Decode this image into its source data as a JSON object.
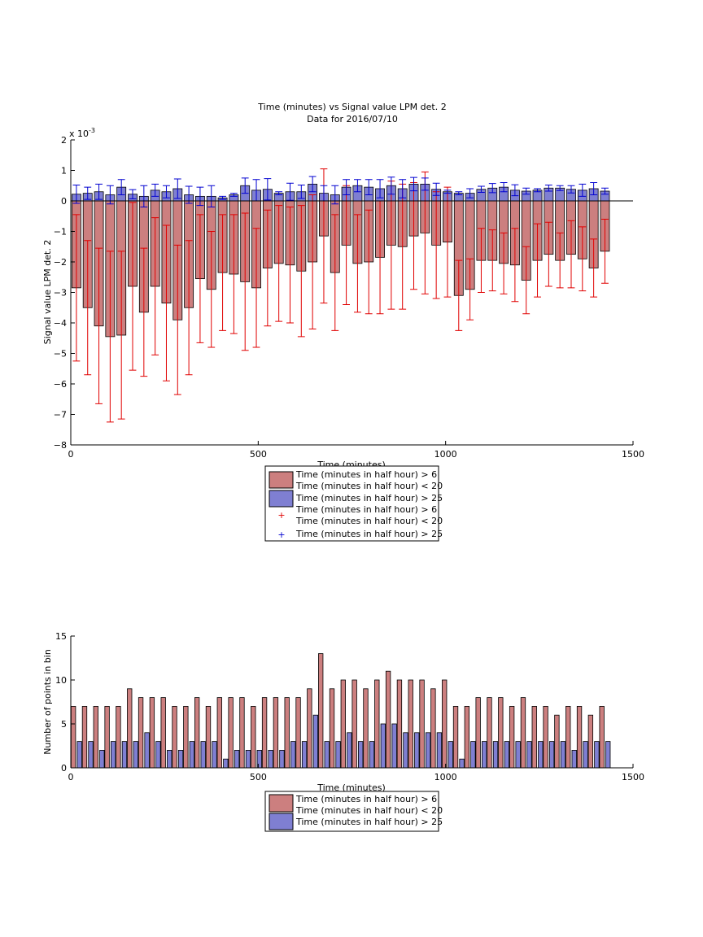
{
  "colors": {
    "red_fill": "#cc7f7f",
    "blue_fill": "#7f7fd2",
    "red_err": "#e00000",
    "blue_err": "#0000d0",
    "axis": "#000000"
  },
  "chart_data": [
    {
      "type": "bar",
      "title": "Time (minutes) vs Signal value LPM det. 2",
      "subtitle": "Data for 2016/07/10",
      "xlabel": "Time (minutes)",
      "ylabel": "Signal value LPM det. 2",
      "y_multiplier_label": "x 10",
      "y_multiplier_exp": "-3",
      "xlim": [
        0,
        1500
      ],
      "ylim": [
        -8,
        2
      ],
      "xticks": [
        "0",
        "500",
        "1000",
        "1500"
      ],
      "yticks": [
        "2",
        "1",
        "0",
        "−1",
        "−2",
        "−3",
        "−4",
        "−5",
        "−6",
        "−7",
        "−8"
      ],
      "bin_width_minutes": 30,
      "x": [
        15,
        45,
        75,
        105,
        135,
        165,
        195,
        225,
        255,
        285,
        315,
        345,
        375,
        405,
        435,
        465,
        495,
        525,
        555,
        585,
        615,
        645,
        675,
        705,
        735,
        765,
        795,
        825,
        855,
        885,
        915,
        945,
        975,
        1005,
        1035,
        1065,
        1095,
        1125,
        1155,
        1185,
        1215,
        1245,
        1275,
        1305,
        1335,
        1365,
        1395,
        1425
      ],
      "series": [
        {
          "name": "Time (minutes in half hour) > 6",
          "name_line2": "Time (minutes in half hour) < 20",
          "values": [
            -2.85,
            -3.5,
            -4.1,
            -4.45,
            -4.4,
            -2.8,
            -3.65,
            -2.8,
            -3.35,
            -3.9,
            -3.5,
            -2.55,
            -2.9,
            -2.35,
            -2.4,
            -2.65,
            -2.85,
            -2.2,
            -2.05,
            -2.1,
            -2.3,
            -2.0,
            -1.15,
            -2.35,
            -1.45,
            -2.05,
            -2.0,
            -1.85,
            -1.45,
            -1.5,
            -1.15,
            -1.05,
            -1.45,
            -1.35,
            -3.1,
            -2.9,
            -1.95,
            -1.95,
            -2.05,
            -2.1,
            -2.6,
            -1.95,
            -1.75,
            -1.95,
            -1.75,
            -1.9,
            -2.2,
            -1.65
          ],
          "err": [
            2.4,
            2.2,
            2.55,
            2.8,
            2.75,
            2.75,
            2.1,
            2.25,
            2.55,
            2.45,
            2.2,
            2.1,
            1.9,
            1.9,
            1.95,
            2.25,
            1.95,
            1.9,
            1.9,
            1.9,
            2.15,
            2.2,
            2.2,
            1.9,
            1.95,
            1.6,
            1.7,
            1.85,
            2.1,
            2.05,
            1.75,
            2.0,
            1.75,
            1.8,
            1.15,
            1.0,
            1.05,
            1.0,
            1.0,
            1.2,
            1.1,
            1.2,
            1.05,
            0.9,
            1.1,
            1.05,
            0.95,
            1.05
          ]
        },
        {
          "name": "Time (minutes in half hour) > 25",
          "values": [
            0.22,
            0.25,
            0.3,
            0.2,
            0.45,
            0.22,
            0.15,
            0.35,
            0.3,
            0.4,
            0.2,
            0.15,
            0.15,
            0.1,
            0.2,
            0.5,
            0.35,
            0.38,
            0.25,
            0.3,
            0.3,
            0.55,
            0.25,
            0.2,
            0.45,
            0.5,
            0.45,
            0.4,
            0.5,
            0.4,
            0.55,
            0.55,
            0.38,
            0.3,
            0.25,
            0.25,
            0.38,
            0.42,
            0.45,
            0.35,
            0.32,
            0.35,
            0.42,
            0.42,
            0.38,
            0.35,
            0.4,
            0.32
          ],
          "err": [
            0.3,
            0.2,
            0.25,
            0.3,
            0.25,
            0.15,
            0.35,
            0.2,
            0.2,
            0.32,
            0.28,
            0.3,
            0.35,
            0.05,
            0.05,
            0.25,
            0.35,
            0.35,
            0.05,
            0.28,
            0.22,
            0.25,
            0.25,
            0.3,
            0.25,
            0.2,
            0.25,
            0.3,
            0.28,
            0.3,
            0.22,
            0.2,
            0.2,
            0.05,
            0.05,
            0.15,
            0.1,
            0.15,
            0.15,
            0.18,
            0.1,
            0.05,
            0.1,
            0.08,
            0.12,
            0.2,
            0.2,
            0.1
          ]
        }
      ],
      "legend": {
        "placement": "below",
        "entries": [
          [
            "Time (minutes in half hour) > 6",
            "Time (minutes in half hour) < 20"
          ],
          [
            "Time (minutes in half hour) > 25"
          ],
          [
            "Time (minutes in half hour) > 6",
            "Time (minutes in half hour) < 20"
          ],
          [
            "Time (minutes in half hour) > 25"
          ]
        ]
      }
    },
    {
      "type": "bar",
      "title": "",
      "xlabel": "Time (minutes)",
      "ylabel": "Number of points in bin",
      "xlim": [
        0,
        1500
      ],
      "ylim": [
        0,
        15
      ],
      "xticks": [
        "0",
        "500",
        "1000",
        "1500"
      ],
      "yticks": [
        "15",
        "10",
        "5",
        "0"
      ],
      "x": [
        15,
        45,
        75,
        105,
        135,
        165,
        195,
        225,
        255,
        285,
        315,
        345,
        375,
        405,
        435,
        465,
        495,
        525,
        555,
        585,
        615,
        645,
        675,
        705,
        735,
        765,
        795,
        825,
        855,
        885,
        915,
        945,
        975,
        1005,
        1035,
        1065,
        1095,
        1125,
        1155,
        1185,
        1215,
        1245,
        1275,
        1305,
        1335,
        1365,
        1395,
        1425
      ],
      "series": [
        {
          "name": "Time (minutes in half hour) > 6",
          "name_line2": "Time (minutes in half hour) < 20",
          "values": [
            7,
            7,
            7,
            7,
            7,
            9,
            8,
            8,
            8,
            7,
            7,
            8,
            7,
            8,
            8,
            8,
            7,
            8,
            8,
            8,
            8,
            9,
            13,
            9,
            10,
            10,
            9,
            10,
            11,
            10,
            10,
            10,
            9,
            10,
            7,
            7,
            8,
            8,
            8,
            7,
            8,
            7,
            7,
            6,
            7,
            7,
            6,
            7
          ]
        },
        {
          "name": "Time (minutes in half hour) > 25",
          "values": [
            3,
            3,
            2,
            3,
            3,
            3,
            4,
            3,
            2,
            2,
            3,
            3,
            3,
            1,
            2,
            2,
            2,
            2,
            2,
            3,
            3,
            6,
            3,
            3,
            4,
            3,
            3,
            5,
            5,
            4,
            4,
            4,
            4,
            3,
            1,
            3,
            3,
            3,
            3,
            3,
            3,
            3,
            3,
            3,
            2,
            3,
            3,
            3
          ]
        }
      ],
      "legend": {
        "placement": "below",
        "entries": [
          [
            "Time (minutes in half hour) > 6",
            "Time (minutes in half hour) < 20"
          ],
          [
            "Time (minutes in half hour) > 25"
          ]
        ]
      }
    }
  ]
}
